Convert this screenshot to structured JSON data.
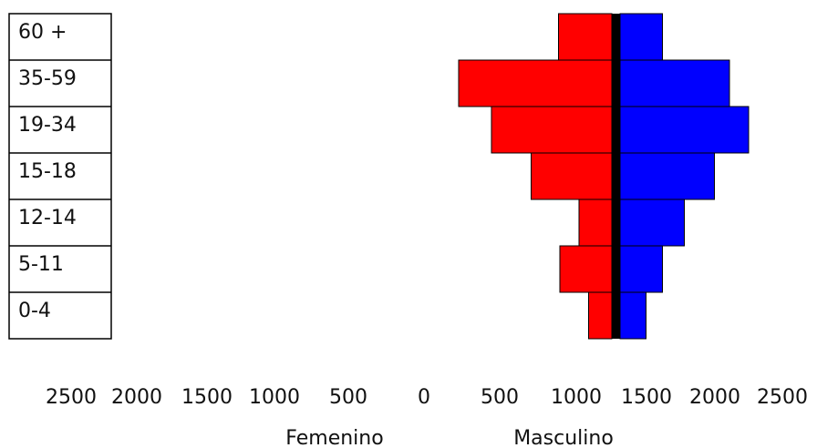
{
  "chart_data": {
    "type": "bar",
    "orientation": "horizontal-population-pyramid",
    "categories": [
      "60 +",
      "35-59",
      "19-34",
      "15-18",
      "12-14",
      "5-11",
      "0-4"
    ],
    "series": [
      {
        "name": "Femenino",
        "color": "#ff0000",
        "side": "left",
        "values": [
          390,
          1120,
          880,
          590,
          240,
          380,
          170
        ]
      },
      {
        "name": "Masculino",
        "color": "#0000ff",
        "side": "right",
        "values": [
          310,
          800,
          940,
          690,
          470,
          310,
          190
        ]
      }
    ],
    "xlabel_left": "Femenino",
    "xlabel_right": "Masculino",
    "x_ticks_left": [
      "2500",
      "2000",
      "1500",
      "1000",
      "500",
      "0"
    ],
    "x_ticks_right": [
      "500",
      "1000",
      "1500",
      "2000",
      "2500"
    ],
    "xlim": [
      0,
      2500
    ],
    "legend": "none",
    "grid": false
  }
}
